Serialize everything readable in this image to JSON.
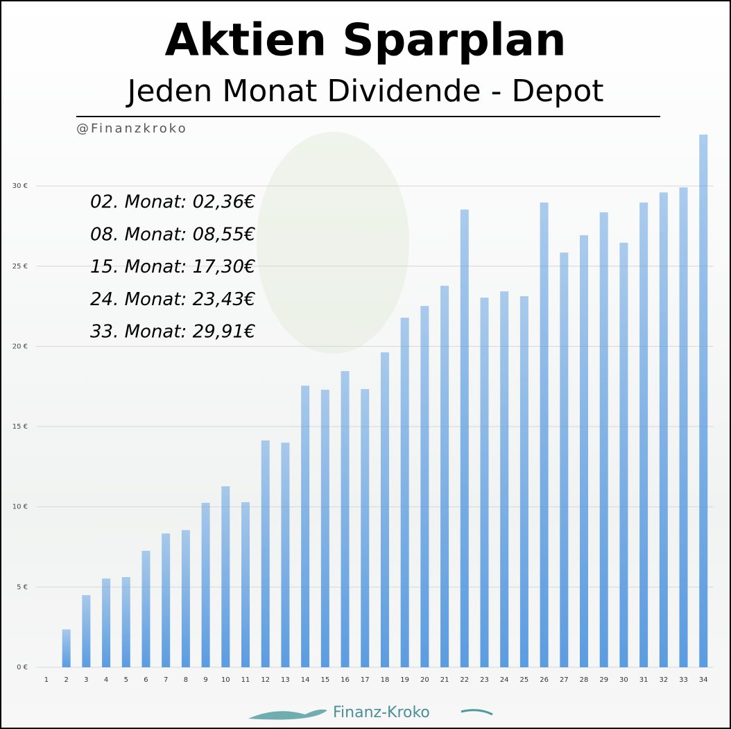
{
  "chart_data": {
    "type": "bar",
    "title": "Aktien Sparplan",
    "subtitle": "Jeden Monat Dividende - Depot",
    "watermark": "@Finanzkroko",
    "logo": "Finanz-Kroko",
    "annotations": [
      "02. Monat: 02,36€",
      "08. Monat: 08,55€",
      "15. Monat: 17,30€",
      "24. Monat: 23,43€",
      "33. Monat: 29,91€"
    ],
    "categories": [
      "1",
      "2",
      "3",
      "4",
      "5",
      "6",
      "7",
      "8",
      "9",
      "10",
      "11",
      "12",
      "13",
      "14",
      "15",
      "16",
      "17",
      "18",
      "19",
      "20",
      "21",
      "22",
      "23",
      "24",
      "25",
      "26",
      "27",
      "28",
      "29",
      "30",
      "31",
      "32",
      "33",
      "34"
    ],
    "values": [
      0,
      2.36,
      4.5,
      5.53,
      5.62,
      7.26,
      8.34,
      8.55,
      10.25,
      11.28,
      10.29,
      14.14,
      14.0,
      17.55,
      17.3,
      18.46,
      17.34,
      19.63,
      21.79,
      22.52,
      23.78,
      28.53,
      23.04,
      23.43,
      23.13,
      28.97,
      25.85,
      26.93,
      28.36,
      26.46,
      28.97,
      29.6,
      29.91,
      33.2
    ],
    "color": "#5b9ce0",
    "ylim": [
      0,
      34
    ],
    "yticks": [
      {
        "value": 0,
        "label": "0 €"
      },
      {
        "value": 5,
        "label": "5 €"
      },
      {
        "value": 10,
        "label": "10 €"
      },
      {
        "value": 15,
        "label": "15 €"
      },
      {
        "value": 20,
        "label": "20 €"
      },
      {
        "value": 25,
        "label": "25 €"
      },
      {
        "value": 30,
        "label": "30 €"
      }
    ],
    "grid": true
  }
}
